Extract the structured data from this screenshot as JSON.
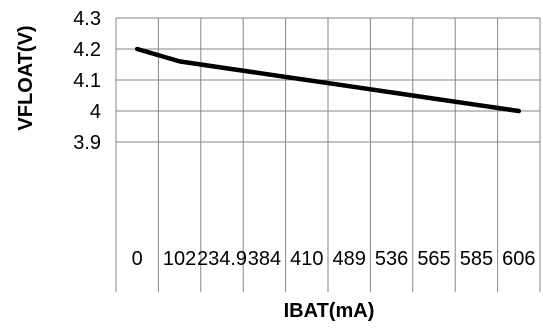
{
  "chart_data": {
    "type": "line",
    "title": "",
    "xlabel": "IBAT(mA)",
    "ylabel": "VFLOAT(V)",
    "categories": [
      "0",
      "102",
      "234.9",
      "384",
      "410",
      "489",
      "536",
      "565",
      "585",
      "606"
    ],
    "series": [
      {
        "values": [
          4.2,
          4.16,
          4.14,
          4.12,
          4.1,
          4.08,
          4.06,
          4.04,
          4.02,
          4.0
        ]
      }
    ],
    "y_ticks": [
      "4.3",
      "4.2",
      "4.1",
      "4",
      "3.9"
    ],
    "ylim": [
      3.9,
      4.3
    ],
    "grid": true,
    "legend": "none",
    "line_color": "#000000",
    "grid_color": "#868686"
  }
}
